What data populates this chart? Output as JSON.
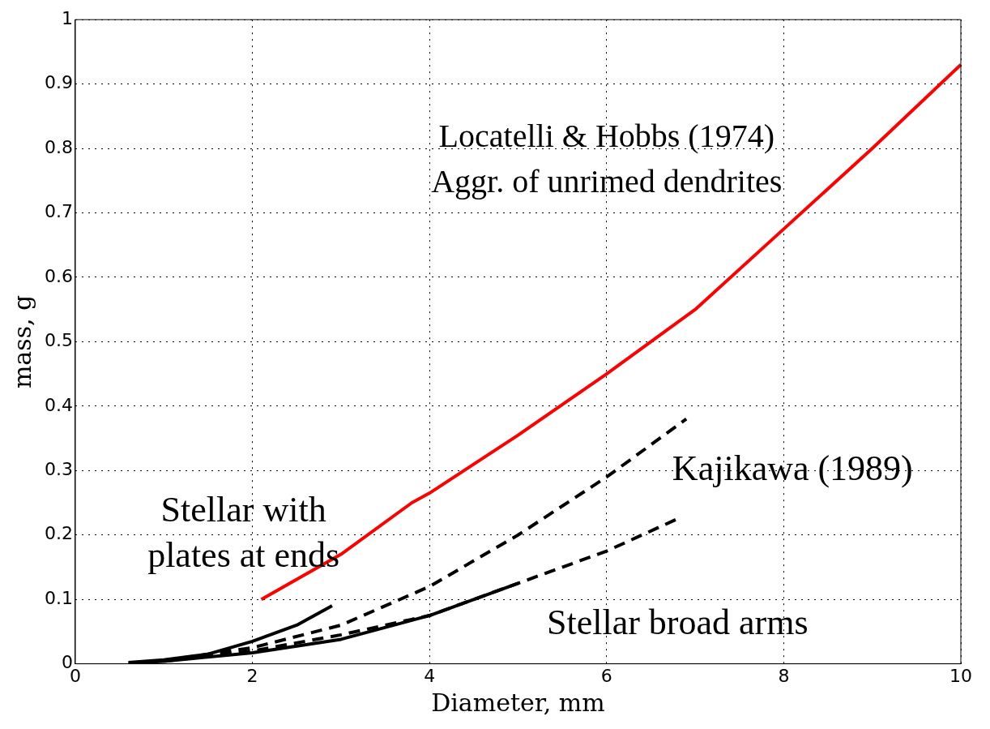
{
  "chart_data": {
    "type": "line",
    "xlabel": "Diameter, mm",
    "ylabel": "mass, g",
    "xlim": [
      0,
      10
    ],
    "ylim": [
      0,
      1
    ],
    "xticks": [
      0,
      2,
      4,
      6,
      8,
      10
    ],
    "yticks": [
      0,
      0.1,
      0.2,
      0.3,
      0.4,
      0.5,
      0.6,
      0.7,
      0.8,
      0.9,
      1
    ],
    "grid": true,
    "legend": false,
    "marker": "none",
    "series": [
      {
        "color": "#ff0000",
        "line_style": "solid",
        "x": [
          2.1,
          3,
          3.8,
          4,
          5,
          6,
          7,
          8,
          9,
          10
        ],
        "values": [
          0.1,
          0.17,
          0.25,
          0.265,
          0.355,
          0.45,
          0.55,
          0.675,
          0.8,
          0.93
        ]
      },
      {
        "color": "#000000",
        "line_style": "solid",
        "x": [
          0.6,
          1,
          1.5,
          2,
          2.5,
          2.9
        ],
        "values": [
          0.002,
          0.006,
          0.015,
          0.035,
          0.06,
          0.09
        ]
      },
      {
        "color": "#000000",
        "line_style": "dashed",
        "x": [
          0.8,
          1,
          2,
          3,
          4,
          5,
          6,
          6.9
        ],
        "values": [
          0.002,
          0.005,
          0.025,
          0.06,
          0.12,
          0.2,
          0.29,
          0.38
        ]
      },
      {
        "color": "#000000",
        "line_style": "solid",
        "x": [
          0.6,
          1,
          2,
          3,
          4,
          5
        ],
        "values": [
          0.001,
          0.004,
          0.017,
          0.038,
          0.075,
          0.125
        ]
      },
      {
        "color": "#000000",
        "line_style": "dashed",
        "x": [
          0.8,
          1,
          2,
          3,
          4,
          5.3,
          6,
          6.8
        ],
        "values": [
          0.002,
          0.004,
          0.02,
          0.045,
          0.075,
          0.14,
          0.175,
          0.225
        ]
      }
    ],
    "annotations": [
      "Locatelli & Hobbs (1974)\nAggr. of unrimed dendrites",
      "Kajikawa (1989)",
      "Stellar with\nplates at ends",
      "Stellar broad arms"
    ]
  }
}
